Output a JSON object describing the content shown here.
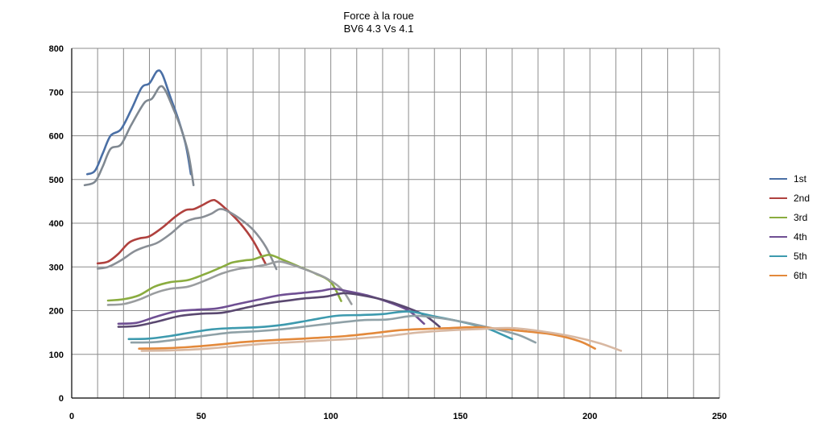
{
  "chart_data": {
    "type": "line",
    "title": "Force à la roue",
    "subtitle": "BV6 4.3 Vs 4.1",
    "xlabel": "",
    "ylabel": "",
    "xlim": [
      0,
      250
    ],
    "ylim": [
      0,
      800
    ],
    "x_ticks": [
      0,
      50,
      100,
      150,
      200,
      250
    ],
    "y_ticks": [
      0,
      100,
      200,
      300,
      400,
      500,
      600,
      700,
      800
    ],
    "x_grid_step": 10,
    "grid": true,
    "legend_position": "right",
    "legend": [
      {
        "label": "1st",
        "color": "#4a6fa5"
      },
      {
        "label": "2nd",
        "color": "#b0413e"
      },
      {
        "label": "3rd",
        "color": "#8aac3f"
      },
      {
        "label": "4th",
        "color": "#6f4f93"
      },
      {
        "label": "5th",
        "color": "#3d9aae"
      },
      {
        "label": "6th",
        "color": "#e3893b"
      }
    ],
    "series": [
      {
        "gear": "1st",
        "variant": "4.3",
        "color": "#4a6fa5",
        "x": [
          6,
          9,
          12,
          15,
          19,
          23,
          27,
          30,
          33,
          35,
          38,
          41,
          44,
          46
        ],
        "y": [
          512,
          520,
          560,
          600,
          615,
          660,
          710,
          720,
          748,
          740,
          690,
          640,
          580,
          512
        ]
      },
      {
        "gear": "1st",
        "variant": "4.1",
        "color": "#7f8891",
        "x": [
          5,
          9,
          12,
          15,
          19,
          23,
          28,
          31,
          34,
          36,
          39,
          42,
          45,
          47
        ],
        "y": [
          487,
          495,
          530,
          570,
          580,
          625,
          675,
          685,
          712,
          705,
          665,
          620,
          560,
          487
        ]
      },
      {
        "gear": "2nd",
        "variant": "4.3",
        "color": "#b0413e",
        "x": [
          10,
          14,
          18,
          22,
          26,
          30,
          35,
          40,
          44,
          47,
          50,
          54,
          56,
          60,
          65,
          70,
          75
        ],
        "y": [
          308,
          312,
          330,
          355,
          365,
          370,
          390,
          415,
          430,
          432,
          440,
          452,
          450,
          430,
          400,
          360,
          305
        ]
      },
      {
        "gear": "2nd",
        "variant": "4.1",
        "color": "#8a8f96",
        "x": [
          10,
          14,
          19,
          24,
          28,
          33,
          38,
          43,
          47,
          50,
          54,
          57,
          60,
          65,
          70,
          75,
          79
        ],
        "y": [
          296,
          300,
          315,
          335,
          345,
          355,
          375,
          400,
          410,
          413,
          422,
          432,
          428,
          410,
          385,
          345,
          295
        ]
      },
      {
        "gear": "3rd",
        "variant": "4.3",
        "color": "#8aac3f",
        "x": [
          14,
          20,
          26,
          32,
          38,
          45,
          52,
          58,
          62,
          67,
          70,
          74,
          77,
          82,
          88,
          94,
          100,
          104
        ],
        "y": [
          223,
          226,
          235,
          255,
          265,
          270,
          285,
          300,
          310,
          315,
          317,
          325,
          327,
          315,
          300,
          285,
          265,
          222
        ]
      },
      {
        "gear": "3rd",
        "variant": "4.1",
        "color": "#9a9d9f",
        "x": [
          14,
          20,
          26,
          32,
          38,
          45,
          52,
          58,
          64,
          70,
          75,
          80,
          85,
          92,
          98,
          104,
          108
        ],
        "y": [
          213,
          215,
          225,
          240,
          250,
          255,
          270,
          285,
          295,
          300,
          305,
          312,
          305,
          290,
          275,
          250,
          215
        ]
      },
      {
        "gear": "4th",
        "variant": "4.3",
        "color": "#6f4f93",
        "x": [
          18,
          25,
          32,
          40,
          48,
          56,
          64,
          72,
          80,
          88,
          96,
          101,
          106,
          114,
          122,
          130,
          136
        ],
        "y": [
          170,
          172,
          185,
          198,
          202,
          205,
          215,
          225,
          235,
          240,
          245,
          250,
          245,
          235,
          220,
          200,
          170
        ]
      },
      {
        "gear": "4th",
        "variant": "4.1",
        "color": "#5a4870",
        "x": [
          18,
          25,
          33,
          42,
          50,
          58,
          66,
          74,
          82,
          90,
          98,
          105,
          112,
          120,
          128,
          136,
          142
        ],
        "y": [
          163,
          165,
          175,
          188,
          193,
          195,
          205,
          215,
          222,
          228,
          232,
          240,
          235,
          225,
          210,
          190,
          163
        ]
      },
      {
        "gear": "5th",
        "variant": "4.3",
        "color": "#3d9aae",
        "x": [
          22,
          30,
          38,
          46,
          54,
          62,
          72,
          82,
          92,
          102,
          112,
          120,
          130,
          140,
          150,
          160,
          165,
          170
        ],
        "y": [
          135,
          136,
          142,
          150,
          157,
          160,
          162,
          168,
          178,
          188,
          190,
          192,
          198,
          187,
          175,
          160,
          148,
          135
        ]
      },
      {
        "gear": "5th",
        "variant": "4.1",
        "color": "#8fa1a7",
        "x": [
          23,
          32,
          42,
          52,
          62,
          72,
          82,
          92,
          102,
          112,
          122,
          132,
          142,
          152,
          162,
          172,
          179
        ],
        "y": [
          127,
          128,
          135,
          143,
          150,
          153,
          158,
          165,
          172,
          178,
          180,
          188,
          183,
          173,
          160,
          145,
          127
        ]
      },
      {
        "gear": "6th",
        "variant": "4.3",
        "color": "#e3893b",
        "x": [
          26,
          36,
          46,
          56,
          66,
          76,
          86,
          96,
          106,
          116,
          126,
          136,
          146,
          156,
          166,
          176,
          186,
          196,
          202
        ],
        "y": [
          113,
          114,
          117,
          122,
          128,
          132,
          135,
          138,
          142,
          148,
          155,
          158,
          160,
          162,
          158,
          152,
          145,
          130,
          113
        ]
      },
      {
        "gear": "6th",
        "variant": "4.1",
        "color": "#d8b8a2",
        "x": [
          27,
          38,
          50,
          62,
          74,
          86,
          98,
          110,
          122,
          134,
          146,
          158,
          170,
          182,
          194,
          204,
          212
        ],
        "y": [
          108,
          109,
          112,
          118,
          124,
          128,
          132,
          136,
          142,
          150,
          155,
          158,
          160,
          152,
          140,
          125,
          108
        ]
      }
    ]
  }
}
